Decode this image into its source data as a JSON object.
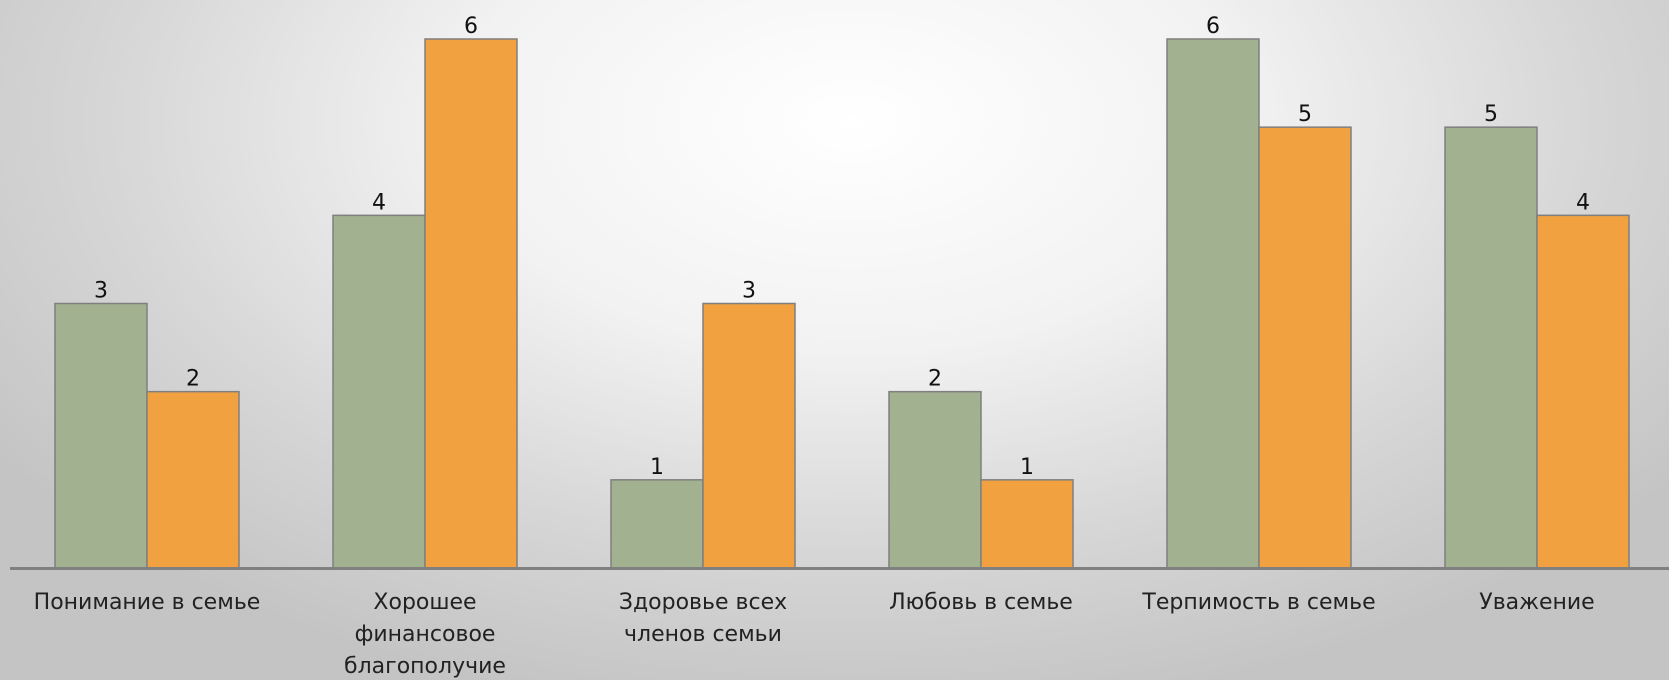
{
  "chart_data": {
    "type": "bar",
    "categories": [
      "Понимание в семье",
      "Хорошее финансовое благополучие",
      "Здоровье всех членов семьи",
      "Любовь в семье",
      "Терпимость в семье",
      "Уважение"
    ],
    "category_lines": [
      [
        "Понимание в семье"
      ],
      [
        "Хорошее",
        "финансовое",
        "благополучие"
      ],
      [
        "Здоровье всех",
        "членов семьи"
      ],
      [
        "Любовь в семье"
      ],
      [
        "Терпимость в семье"
      ],
      [
        "Уважение"
      ]
    ],
    "series": [
      {
        "values": [
          3,
          4,
          1,
          2,
          6,
          5
        ],
        "color": "#a2b18f"
      },
      {
        "values": [
          2,
          6,
          3,
          1,
          5,
          4
        ],
        "color": "#f2a141"
      }
    ],
    "ylim": [
      0,
      6
    ],
    "grid": false,
    "legend": "none",
    "data_labels": true,
    "axis_color": "#808080"
  }
}
